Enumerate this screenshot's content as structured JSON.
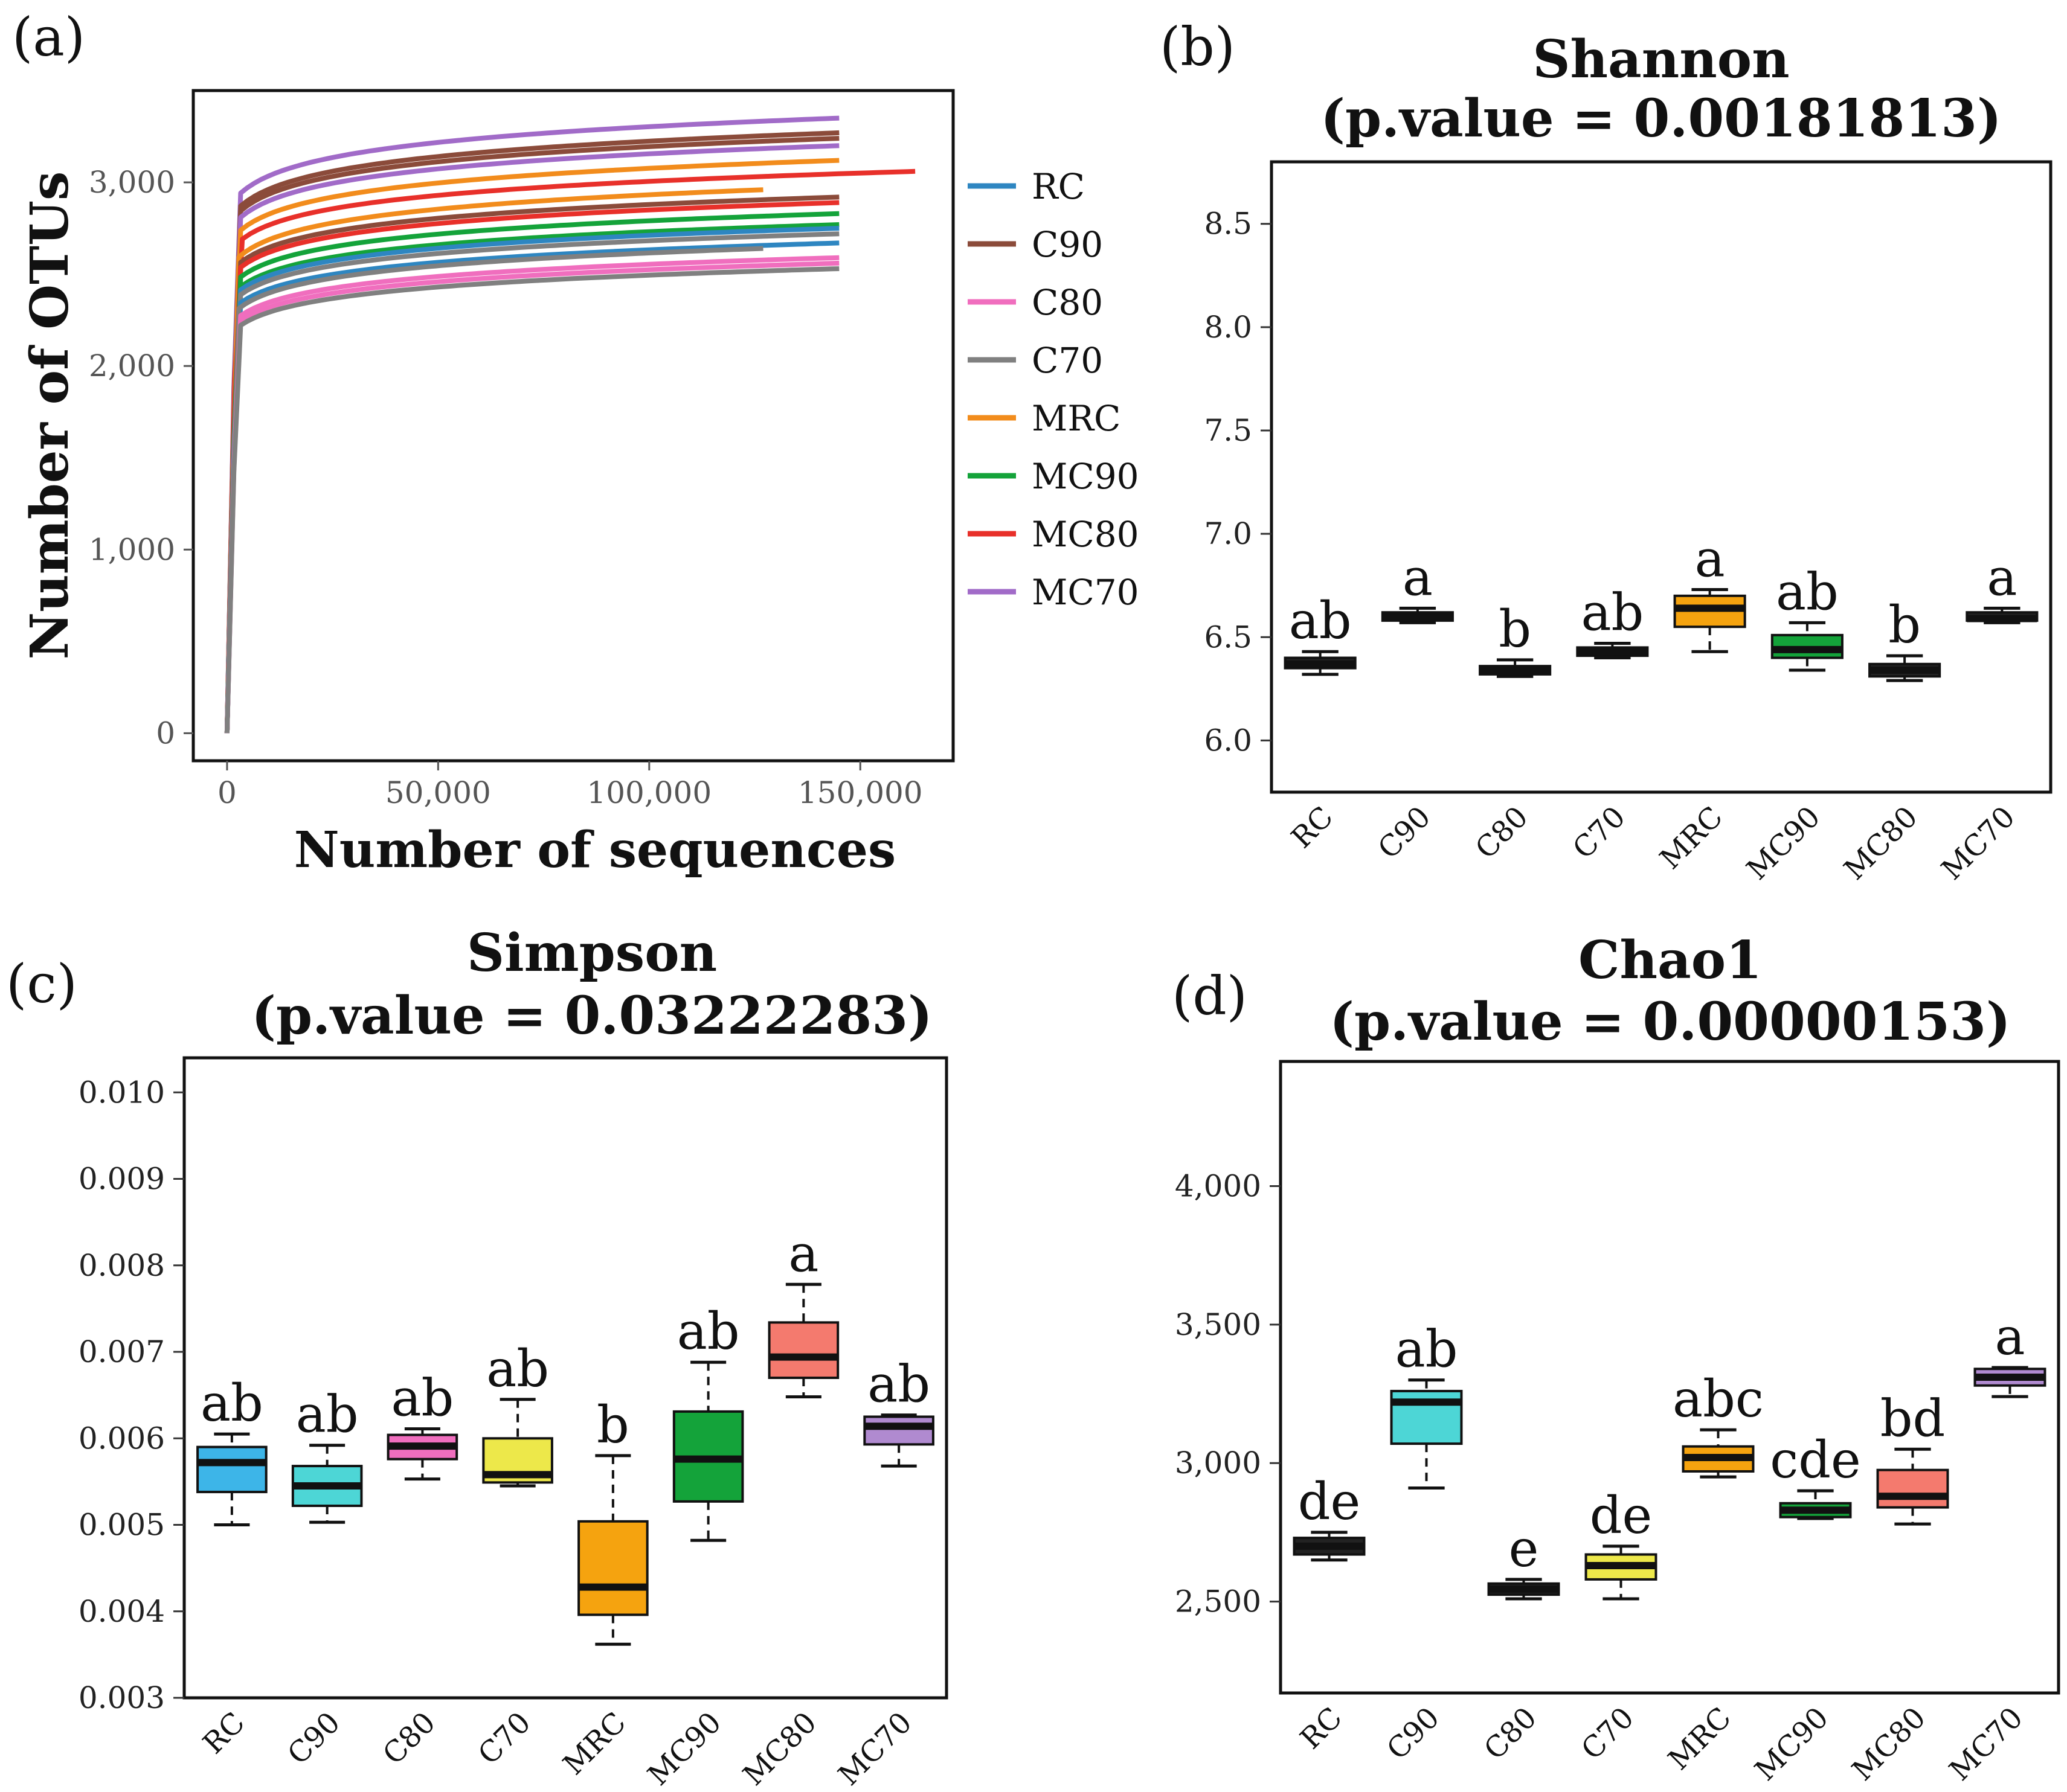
{
  "colors": {
    "RC": "#2E86C1",
    "C90": "#8B4B3A",
    "C80": "#F06EBE",
    "C70": "#808080",
    "MRC": "#F28C1C",
    "MC90": "#14A33A",
    "MC80": "#E8302A",
    "MC70": "#A16BC8"
  },
  "chart_data": [
    {
      "panel": "(a)",
      "type": "line",
      "title": "",
      "xlabel": "Number of sequences",
      "ylabel": "Number of OTUs",
      "xlim": [
        -8000,
        172000
      ],
      "ylim": [
        -150,
        3500
      ],
      "xticks": [
        0,
        50000,
        100000,
        150000
      ],
      "xtick_labels": [
        "0",
        "50,000",
        "100,000",
        "150,000"
      ],
      "yticks": [
        0,
        1000,
        2000,
        3000
      ],
      "ytick_labels": [
        "0",
        "1,000",
        "2,000",
        "3,000"
      ],
      "legend": [
        "RC",
        "C90",
        "C80",
        "C70",
        "MRC",
        "MC90",
        "MC80",
        "MC70"
      ],
      "legend_position": "right",
      "series": [
        {
          "name": "MC70",
          "end_x": 145000,
          "end_y": 3350
        },
        {
          "name": "C90",
          "end_x": 145000,
          "end_y": 3270
        },
        {
          "name": "C90",
          "end_x": 145000,
          "end_y": 3240
        },
        {
          "name": "MC70",
          "end_x": 145000,
          "end_y": 3200
        },
        {
          "name": "MRC",
          "end_x": 145000,
          "end_y": 3120
        },
        {
          "name": "MC80",
          "end_x": 163000,
          "end_y": 3060
        },
        {
          "name": "MRC",
          "end_x": 127000,
          "end_y": 2960
        },
        {
          "name": "C90",
          "end_x": 145000,
          "end_y": 2920
        },
        {
          "name": "MC80",
          "end_x": 145000,
          "end_y": 2890
        },
        {
          "name": "MC90",
          "end_x": 145000,
          "end_y": 2830
        },
        {
          "name": "MC90",
          "end_x": 145000,
          "end_y": 2770
        },
        {
          "name": "RC",
          "end_x": 145000,
          "end_y": 2750
        },
        {
          "name": "C70",
          "end_x": 145000,
          "end_y": 2720
        },
        {
          "name": "RC",
          "end_x": 145000,
          "end_y": 2670
        },
        {
          "name": "C70",
          "end_x": 127000,
          "end_y": 2640
        },
        {
          "name": "C80",
          "end_x": 145000,
          "end_y": 2590
        },
        {
          "name": "C80",
          "end_x": 145000,
          "end_y": 2560
        },
        {
          "name": "C70",
          "end_x": 145000,
          "end_y": 2530
        }
      ]
    },
    {
      "panel": "(b)",
      "type": "box",
      "title": "Shannon",
      "subtitle": "(p.value = 0.00181813)",
      "categories": [
        "RC",
        "C90",
        "C80",
        "C70",
        "MRC",
        "MC90",
        "MC80",
        "MC70"
      ],
      "ylim": [
        5.75,
        8.8
      ],
      "yticks": [
        6.0,
        6.5,
        7.0,
        7.5,
        8.0,
        8.5
      ],
      "ytick_labels": [
        "6.0",
        "6.5",
        "7.0",
        "7.5",
        "8.0",
        "8.5"
      ],
      "letters": [
        "ab",
        "a",
        "b",
        "ab",
        "a",
        "ab",
        "b",
        "a"
      ],
      "boxes": [
        {
          "min": 6.32,
          "q1": 6.35,
          "median": 6.37,
          "q3": 6.4,
          "max": 6.43
        },
        {
          "min": 6.57,
          "q1": 6.58,
          "median": 6.6,
          "q3": 6.62,
          "max": 6.64
        },
        {
          "min": 6.31,
          "q1": 6.32,
          "median": 6.34,
          "q3": 6.36,
          "max": 6.39
        },
        {
          "min": 6.4,
          "q1": 6.41,
          "median": 6.43,
          "q3": 6.45,
          "max": 6.47
        },
        {
          "min": 6.43,
          "q1": 6.55,
          "median": 6.64,
          "q3": 6.7,
          "max": 6.73
        },
        {
          "min": 6.34,
          "q1": 6.4,
          "median": 6.44,
          "q3": 6.51,
          "max": 6.57
        },
        {
          "min": 6.29,
          "q1": 6.31,
          "median": 6.34,
          "q3": 6.37,
          "max": 6.41
        },
        {
          "min": 6.57,
          "q1": 6.58,
          "median": 6.59,
          "q3": 6.62,
          "max": 6.64
        }
      ],
      "box_colors": [
        "#222222",
        "#222222",
        "#222222",
        "#222222",
        "#F5A30F",
        "#14A33A",
        "#222222",
        "#222222"
      ]
    },
    {
      "panel": "(c)",
      "type": "box",
      "title": "Simpson",
      "subtitle": "(p.value = 0.03222283)",
      "categories": [
        "RC",
        "C90",
        "C80",
        "C70",
        "MRC",
        "MC90",
        "MC80",
        "MC70"
      ],
      "ylim": [
        0.003,
        0.0104
      ],
      "yticks": [
        0.003,
        0.004,
        0.005,
        0.006,
        0.007,
        0.008,
        0.009,
        0.01
      ],
      "ytick_labels": [
        "0.003",
        "0.004",
        "0.005",
        "0.006",
        "0.007",
        "0.008",
        "0.009",
        "0.010"
      ],
      "letters": [
        "ab",
        "ab",
        "ab",
        "ab",
        "b",
        "ab",
        "a",
        "ab"
      ],
      "boxes": [
        {
          "min": 0.005,
          "q1": 0.00538,
          "median": 0.00572,
          "q3": 0.0059,
          "max": 0.00605
        },
        {
          "min": 0.00503,
          "q1": 0.00522,
          "median": 0.00545,
          "q3": 0.00568,
          "max": 0.00592
        },
        {
          "min": 0.00553,
          "q1": 0.00576,
          "median": 0.00591,
          "q3": 0.00604,
          "max": 0.00611
        },
        {
          "min": 0.00545,
          "q1": 0.00549,
          "median": 0.00558,
          "q3": 0.006,
          "max": 0.00645
        },
        {
          "min": 0.00362,
          "q1": 0.00396,
          "median": 0.00428,
          "q3": 0.00504,
          "max": 0.0058
        },
        {
          "min": 0.00482,
          "q1": 0.00527,
          "median": 0.00576,
          "q3": 0.00631,
          "max": 0.00688
        },
        {
          "min": 0.00648,
          "q1": 0.0067,
          "median": 0.00694,
          "q3": 0.00734,
          "max": 0.00778
        },
        {
          "min": 0.00568,
          "q1": 0.00593,
          "median": 0.00614,
          "q3": 0.00625,
          "max": 0.00627
        }
      ],
      "box_colors": [
        "#3DB5E8",
        "#4DD6D6",
        "#F06EBE",
        "#EDE84A",
        "#F5A30F",
        "#14A33A",
        "#F47A6E",
        "#B08AD0"
      ]
    },
    {
      "panel": "(d)",
      "type": "box",
      "title": "Chao1",
      "subtitle": "(p.value = 0.00000153)",
      "categories": [
        "RC",
        "C90",
        "C80",
        "C70",
        "MRC",
        "MC90",
        "MC80",
        "MC70"
      ],
      "ylim": [
        2170,
        4450
      ],
      "yticks": [
        2500,
        3000,
        3500,
        4000
      ],
      "ytick_labels": [
        "2,500",
        "3,000",
        "3,500",
        "4,000"
      ],
      "letters": [
        "de",
        "ab",
        "e",
        "de",
        "abc",
        "cde",
        "bd",
        "a"
      ],
      "boxes": [
        {
          "min": 2650,
          "q1": 2670,
          "median": 2700,
          "q3": 2730,
          "max": 2750
        },
        {
          "min": 2910,
          "q1": 3070,
          "median": 3220,
          "q3": 3260,
          "max": 3300
        },
        {
          "min": 2510,
          "q1": 2525,
          "median": 2545,
          "q3": 2565,
          "max": 2580
        },
        {
          "min": 2510,
          "q1": 2580,
          "median": 2630,
          "q3": 2670,
          "max": 2700
        },
        {
          "min": 2950,
          "q1": 2970,
          "median": 3020,
          "q3": 3060,
          "max": 3120
        },
        {
          "min": 2800,
          "q1": 2805,
          "median": 2830,
          "q3": 2855,
          "max": 2900
        },
        {
          "min": 2780,
          "q1": 2840,
          "median": 2880,
          "q3": 2975,
          "max": 3050
        },
        {
          "min": 3240,
          "q1": 3280,
          "median": 3310,
          "q3": 3340,
          "max": 3345
        }
      ],
      "box_colors": [
        "#222222",
        "#4DD6D6",
        "#222222",
        "#EDE84A",
        "#F5A30F",
        "#14A33A",
        "#F47A6E",
        "#B08AD0"
      ]
    }
  ]
}
